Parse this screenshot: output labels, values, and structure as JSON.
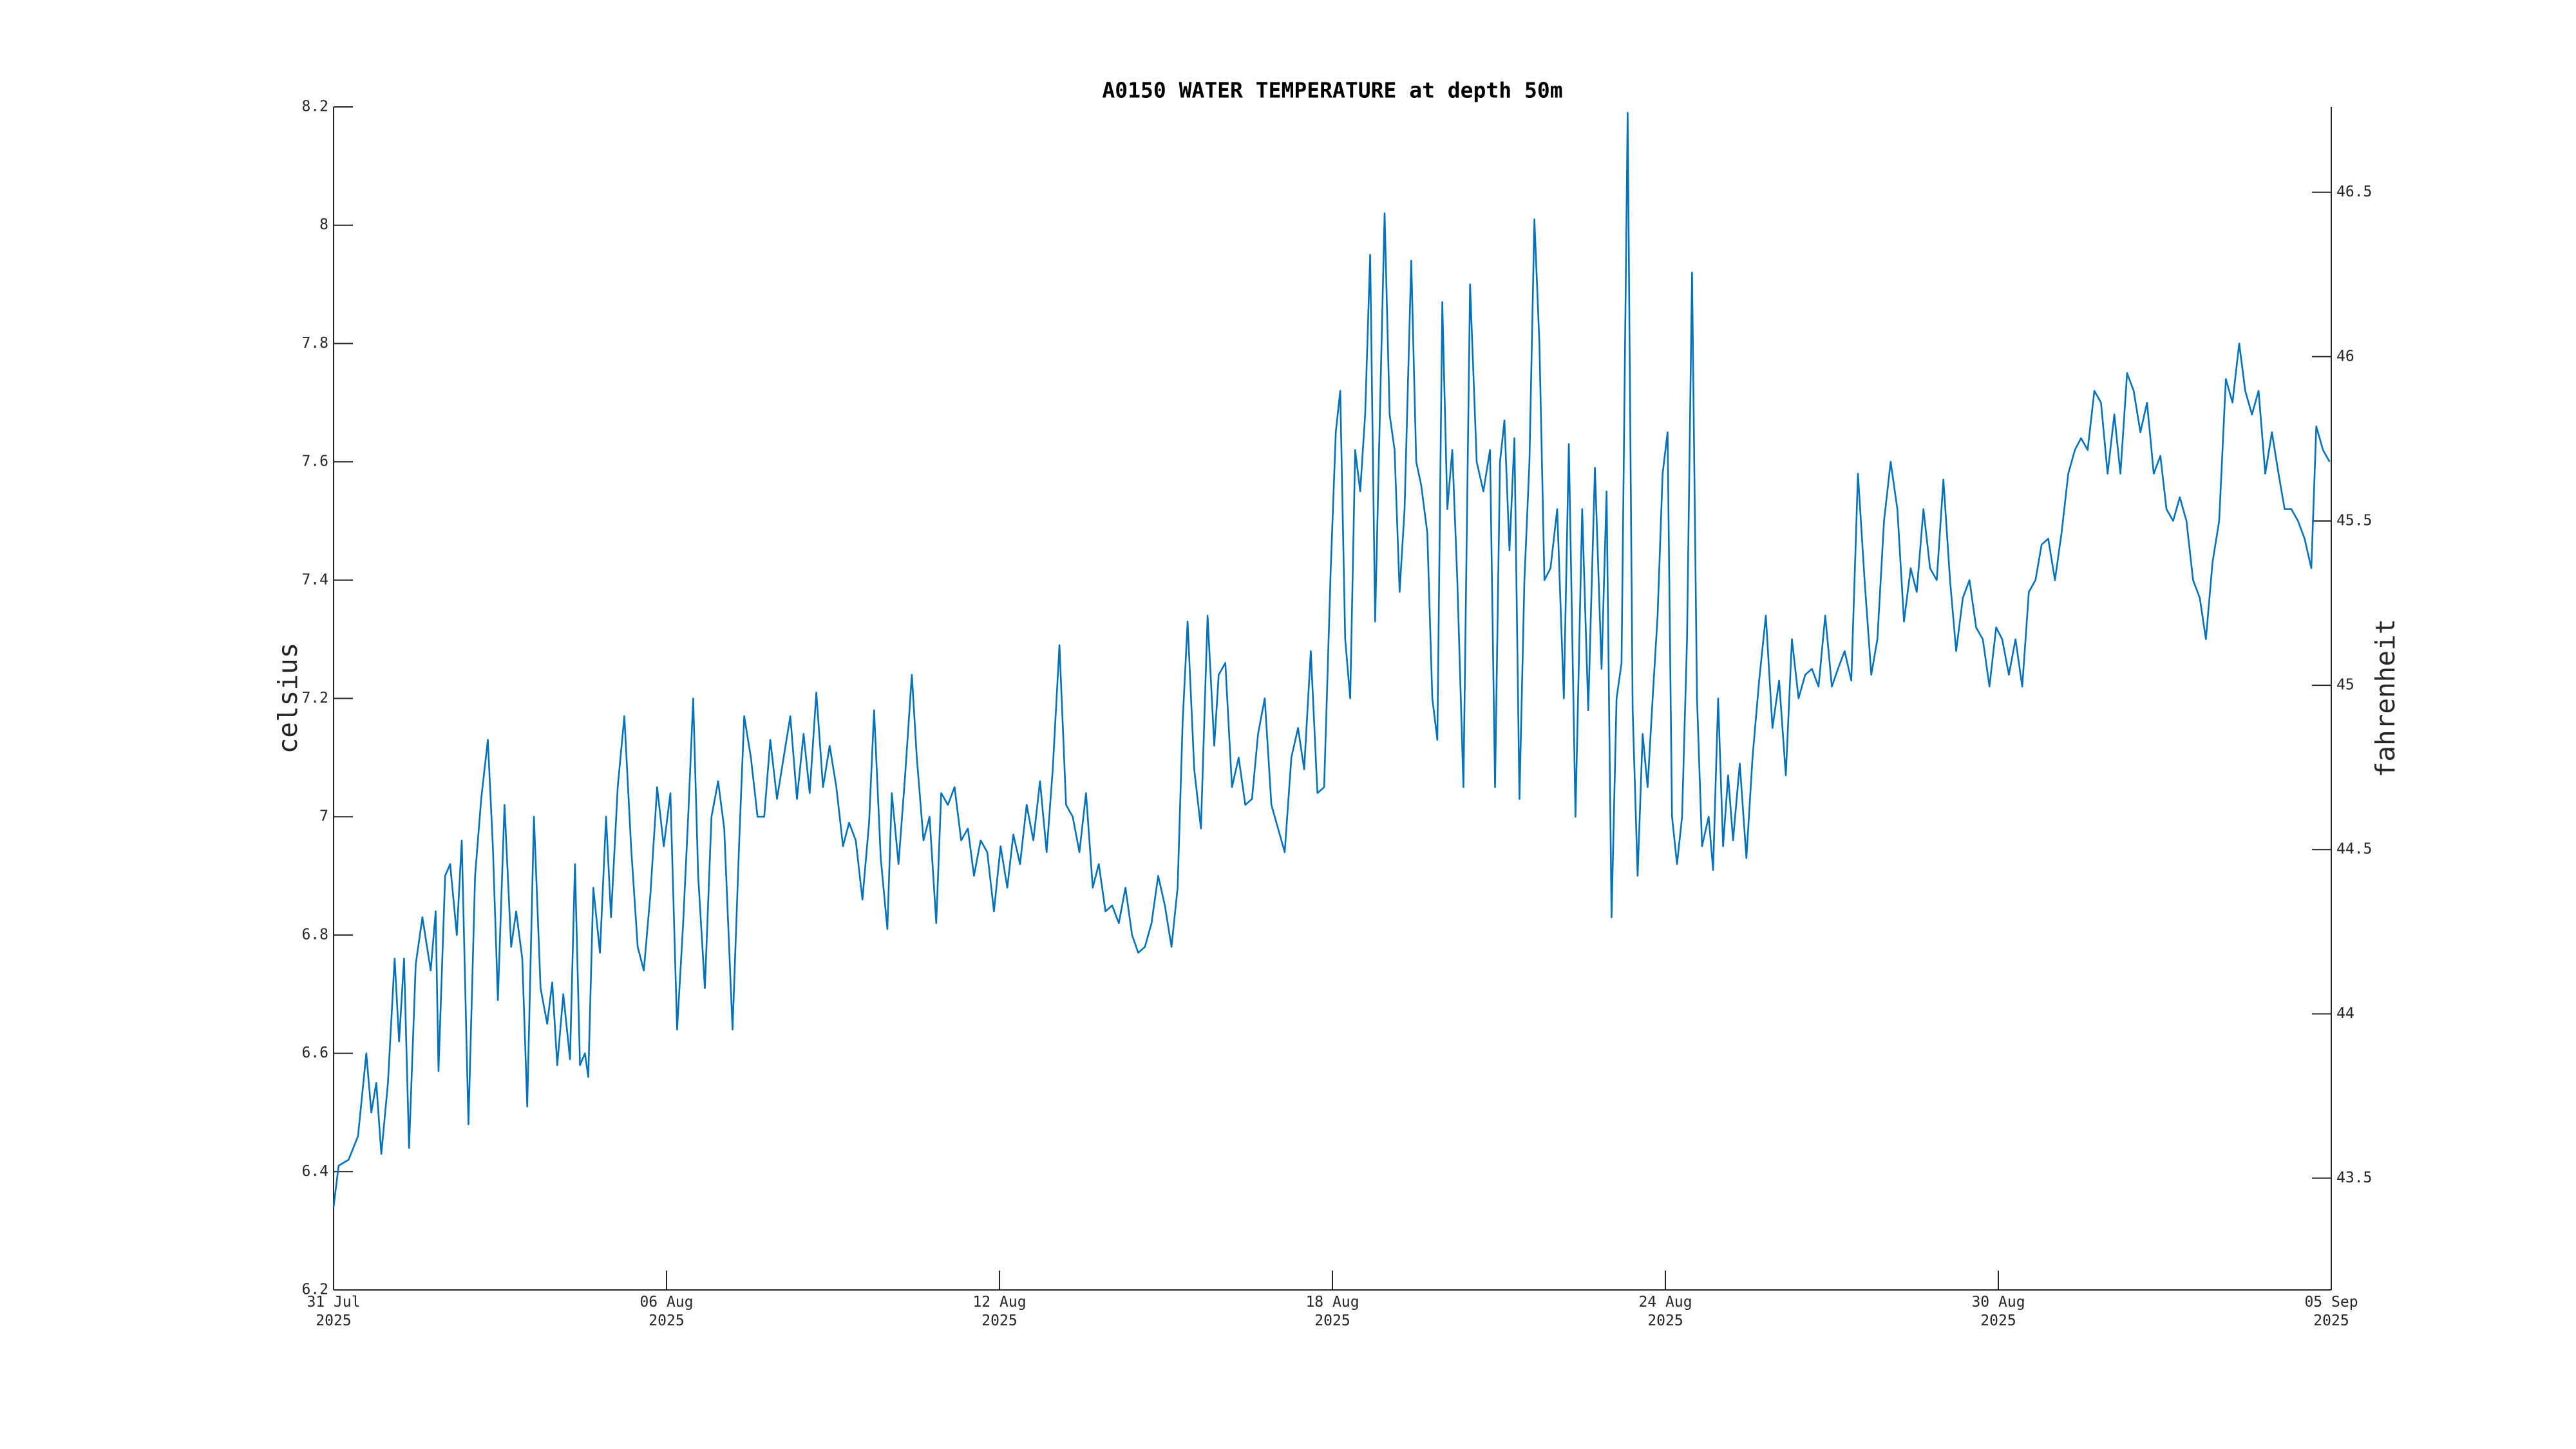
{
  "chart_data": {
    "type": "line",
    "title": "A0150 WATER TEMPERATURE at depth 50m",
    "ylabel": "celsius",
    "y2label": "fahrenheit",
    "color": "#0072bd",
    "xlim": [
      0,
      36
    ],
    "xticks": [
      {
        "value": 0,
        "label": "31 Jul\n2025"
      },
      {
        "value": 6,
        "label": "06 Aug\n2025"
      },
      {
        "value": 12,
        "label": "12 Aug\n2025"
      },
      {
        "value": 18,
        "label": "18 Aug\n2025"
      },
      {
        "value": 24,
        "label": "24 Aug\n2025"
      },
      {
        "value": 30,
        "label": "30 Aug\n2025"
      },
      {
        "value": 36,
        "label": "05 Sep\n2025"
      }
    ],
    "ylim": [
      6.2,
      8.2
    ],
    "yticks": [
      6.2,
      6.4,
      6.6,
      6.8,
      7,
      7.2,
      7.4,
      7.6,
      7.8,
      8,
      8.2
    ],
    "y2lim": [
      43.16,
      46.76
    ],
    "y2ticks": [
      43.5,
      44,
      44.5,
      45,
      45.5,
      46,
      46.5
    ],
    "x": [
      0,
      0.09,
      0.27,
      0.44,
      0.59,
      0.68,
      0.77,
      0.86,
      0.98,
      1.1,
      1.18,
      1.27,
      1.36,
      1.48,
      1.6,
      1.75,
      1.84,
      1.89,
      2.01,
      2.1,
      2.22,
      2.31,
      2.43,
      2.55,
      2.66,
      2.78,
      2.87,
      2.96,
      3.08,
      3.2,
      3.29,
      3.4,
      3.49,
      3.61,
      3.73,
      3.85,
      3.94,
      4.03,
      4.14,
      4.26,
      4.35,
      4.44,
      4.53,
      4.59,
      4.68,
      4.8,
      4.91,
      5.0,
      5.12,
      5.24,
      5.36,
      5.48,
      5.59,
      5.71,
      5.83,
      5.95,
      6.07,
      6.19,
      6.3,
      6.39,
      6.48,
      6.57,
      6.69,
      6.81,
      6.93,
      7.04,
      7.19,
      7.31,
      7.4,
      7.52,
      7.64,
      7.76,
      7.87,
      7.99,
      8.11,
      8.23,
      8.35,
      8.47,
      8.58,
      8.7,
      8.82,
      8.94,
      9.06,
      9.18,
      9.29,
      9.41,
      9.53,
      9.65,
      9.74,
      9.86,
      9.98,
      10.06,
      10.18,
      10.3,
      10.42,
      10.51,
      10.63,
      10.74,
      10.86,
      10.95,
      11.07,
      11.19,
      11.31,
      11.43,
      11.54,
      11.66,
      11.78,
      11.9,
      12.02,
      12.14,
      12.25,
      12.37,
      12.49,
      12.61,
      12.73,
      12.85,
      12.96,
      13.08,
      13.2,
      13.32,
      13.44,
      13.56,
      13.68,
      13.79,
      13.91,
      14.03,
      14.15,
      14.27,
      14.39,
      14.5,
      14.62,
      14.74,
      14.86,
      14.98,
      15.1,
      15.21,
      15.3,
      15.39,
      15.51,
      15.63,
      15.75,
      15.87,
      15.95,
      16.07,
      16.19,
      16.31,
      16.43,
      16.55,
      16.66,
      16.78,
      16.9,
      17.02,
      17.14,
      17.26,
      17.38,
      17.49,
      17.61,
      17.73,
      17.85,
      17.97,
      18.06,
      18.14,
      18.23,
      18.32,
      18.41,
      18.5,
      18.59,
      18.68,
      18.77,
      18.86,
      18.94,
      19.03,
      19.12,
      19.21,
      19.3,
      19.42,
      19.51,
      19.6,
      19.71,
      19.8,
      19.89,
      19.98,
      20.07,
      20.16,
      20.25,
      20.36,
      20.48,
      20.6,
      20.72,
      20.84,
      20.93,
      21.02,
      21.1,
      21.19,
      21.28,
      21.37,
      21.46,
      21.55,
      21.64,
      21.73,
      21.82,
      21.93,
      22.05,
      22.17,
      22.26,
      22.38,
      22.5,
      22.61,
      22.73,
      22.85,
      22.94,
      23.03,
      23.12,
      23.21,
      23.32,
      23.41,
      23.5,
      23.59,
      23.68,
      23.77,
      23.86,
      23.95,
      24.04,
      24.12,
      24.21,
      24.3,
      24.39,
      24.48,
      24.57,
      24.66,
      24.78,
      24.86,
      24.95,
      25.04,
      25.13,
      25.22,
      25.34,
      25.46,
      25.57,
      25.69,
      25.81,
      25.93,
      26.05,
      26.17,
      26.28,
      26.4,
      26.52,
      26.64,
      26.76,
      26.88,
      27.0,
      27.11,
      27.23,
      27.35,
      27.47,
      27.59,
      27.71,
      27.82,
      27.94,
      28.06,
      28.18,
      28.3,
      28.42,
      28.53,
      28.65,
      28.77,
      28.89,
      29.01,
      29.13,
      29.24,
      29.36,
      29.48,
      29.6,
      29.72,
      29.84,
      29.96,
      30.07,
      30.19,
      30.31,
      30.43,
      30.55,
      30.67,
      30.78,
      30.9,
      31.02,
      31.14,
      31.26,
      31.38,
      31.49,
      31.61,
      31.73,
      31.85,
      31.97,
      32.09,
      32.2,
      32.32,
      32.44,
      32.56,
      32.68,
      32.8,
      32.92,
      33.03,
      33.15,
      33.27,
      33.39,
      33.51,
      33.63,
      33.74,
      33.86,
      33.98,
      34.1,
      34.22,
      34.34,
      34.45,
      34.57,
      34.69,
      34.81,
      34.93,
      35.05,
      35.16,
      35.28,
      35.4,
      35.52,
      35.64,
      35.73,
      35.85,
      35.97
    ],
    "values": [
      6.34,
      6.41,
      6.42,
      6.46,
      6.6,
      6.5,
      6.55,
      6.43,
      6.55,
      6.76,
      6.62,
      6.76,
      6.44,
      6.75,
      6.83,
      6.74,
      6.84,
      6.57,
      6.9,
      6.92,
      6.8,
      6.96,
      6.48,
      6.9,
      7.03,
      7.13,
      6.95,
      6.69,
      7.02,
      6.78,
      6.84,
      6.76,
      6.51,
      7.0,
      6.71,
      6.65,
      6.72,
      6.58,
      6.7,
      6.59,
      6.92,
      6.58,
      6.6,
      6.56,
      6.88,
      6.77,
      7.0,
      6.83,
      7.05,
      7.17,
      6.95,
      6.78,
      6.74,
      6.87,
      7.05,
      6.95,
      7.04,
      6.64,
      6.82,
      7.0,
      7.2,
      6.9,
      6.71,
      7.0,
      7.06,
      6.98,
      6.64,
      6.96,
      7.17,
      7.1,
      7.0,
      7.0,
      7.13,
      7.03,
      7.1,
      7.17,
      7.03,
      7.14,
      7.04,
      7.21,
      7.05,
      7.12,
      7.05,
      6.95,
      6.99,
      6.96,
      6.86,
      6.99,
      7.18,
      6.93,
      6.81,
      7.04,
      6.92,
      7.07,
      7.24,
      7.1,
      6.96,
      7.0,
      6.82,
      7.04,
      7.02,
      7.05,
      6.96,
      6.98,
      6.9,
      6.96,
      6.94,
      6.84,
      6.95,
      6.88,
      6.97,
      6.92,
      7.02,
      6.96,
      7.06,
      6.94,
      7.08,
      7.29,
      7.02,
      7.0,
      6.94,
      7.04,
      6.88,
      6.92,
      6.84,
      6.85,
      6.82,
      6.88,
      6.8,
      6.77,
      6.78,
      6.82,
      6.9,
      6.85,
      6.78,
      6.88,
      7.16,
      7.33,
      7.08,
      6.98,
      7.34,
      7.12,
      7.24,
      7.26,
      7.05,
      7.1,
      7.02,
      7.03,
      7.14,
      7.2,
      7.02,
      6.98,
      6.94,
      7.1,
      7.15,
      7.08,
      7.28,
      7.04,
      7.05,
      7.42,
      7.65,
      7.72,
      7.3,
      7.2,
      7.62,
      7.55,
      7.68,
      7.95,
      7.33,
      7.7,
      8.02,
      7.68,
      7.62,
      7.38,
      7.52,
      7.94,
      7.6,
      7.56,
      7.48,
      7.2,
      7.13,
      7.87,
      7.52,
      7.62,
      7.4,
      7.05,
      7.9,
      7.6,
      7.55,
      7.62,
      7.05,
      7.6,
      7.67,
      7.45,
      7.64,
      7.03,
      7.4,
      7.6,
      8.01,
      7.8,
      7.4,
      7.42,
      7.52,
      7.2,
      7.63,
      7.0,
      7.52,
      7.18,
      7.59,
      7.25,
      7.55,
      6.83,
      7.2,
      7.26,
      8.19,
      7.18,
      6.9,
      7.14,
      7.05,
      7.2,
      7.34,
      7.58,
      7.65,
      7.0,
      6.92,
      7.0,
      7.3,
      7.92,
      7.2,
      6.95,
      7.0,
      6.91,
      7.2,
      6.95,
      7.07,
      6.96,
      7.09,
      6.93,
      7.1,
      7.23,
      7.34,
      7.15,
      7.23,
      7.07,
      7.3,
      7.2,
      7.24,
      7.25,
      7.22,
      7.34,
      7.22,
      7.25,
      7.28,
      7.23,
      7.58,
      7.4,
      7.24,
      7.3,
      7.5,
      7.6,
      7.52,
      7.33,
      7.42,
      7.38,
      7.52,
      7.42,
      7.4,
      7.57,
      7.4,
      7.28,
      7.37,
      7.4,
      7.32,
      7.3,
      7.22,
      7.32,
      7.3,
      7.24,
      7.3,
      7.22,
      7.38,
      7.4,
      7.46,
      7.47,
      7.4,
      7.48,
      7.58,
      7.62,
      7.64,
      7.62,
      7.72,
      7.7,
      7.58,
      7.68,
      7.58,
      7.75,
      7.72,
      7.65,
      7.7,
      7.58,
      7.61,
      7.52,
      7.5,
      7.54,
      7.5,
      7.4,
      7.37,
      7.3,
      7.43,
      7.5,
      7.74,
      7.7,
      7.8,
      7.72,
      7.68,
      7.72,
      7.58,
      7.65,
      7.58,
      7.52,
      7.52,
      7.5,
      7.47,
      7.42,
      7.66,
      7.62,
      7.6
    ]
  }
}
